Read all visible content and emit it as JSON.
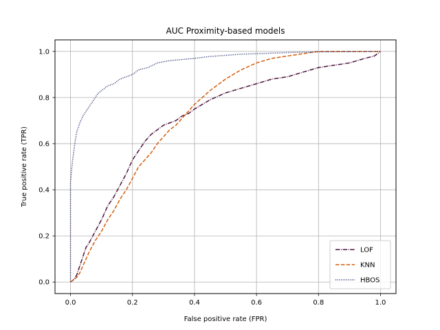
{
  "chart_data": {
    "type": "line",
    "title": "AUC Proximity-based models",
    "xlabel": "False positive rate (FPR)",
    "ylabel": "True positive rate (TPR)",
    "xlim": [
      -0.05,
      1.05
    ],
    "ylim": [
      -0.05,
      1.05
    ],
    "xticks": [
      0.0,
      0.2,
      0.4,
      0.6,
      0.8,
      1.0
    ],
    "yticks": [
      0.0,
      0.2,
      0.4,
      0.6,
      0.8,
      1.0
    ],
    "xtick_labels": [
      "0.0",
      "0.2",
      "0.4",
      "0.6",
      "0.8",
      "1.0"
    ],
    "ytick_labels": [
      "0.0",
      "0.2",
      "0.4",
      "0.6",
      "0.8",
      "1.0"
    ],
    "grid": true,
    "legend_position": "lower-right",
    "series": [
      {
        "name": "LOF",
        "color": "#4a0f3a",
        "style": "dashdot",
        "x": [
          0.0,
          0.01,
          0.02,
          0.03,
          0.04,
          0.05,
          0.06,
          0.08,
          0.1,
          0.12,
          0.14,
          0.16,
          0.18,
          0.2,
          0.22,
          0.24,
          0.26,
          0.28,
          0.3,
          0.32,
          0.34,
          0.36,
          0.38,
          0.4,
          0.45,
          0.5,
          0.55,
          0.6,
          0.65,
          0.7,
          0.75,
          0.8,
          0.85,
          0.9,
          0.95,
          0.98,
          1.0
        ],
        "y": [
          0.0,
          0.01,
          0.03,
          0.07,
          0.11,
          0.15,
          0.17,
          0.22,
          0.27,
          0.33,
          0.37,
          0.42,
          0.47,
          0.53,
          0.57,
          0.61,
          0.64,
          0.66,
          0.68,
          0.69,
          0.7,
          0.72,
          0.73,
          0.75,
          0.79,
          0.82,
          0.84,
          0.86,
          0.88,
          0.89,
          0.91,
          0.93,
          0.94,
          0.95,
          0.97,
          0.98,
          1.0
        ]
      },
      {
        "name": "KNN",
        "color": "#d45a0a",
        "style": "dashed",
        "x": [
          0.0,
          0.01,
          0.02,
          0.03,
          0.04,
          0.05,
          0.06,
          0.08,
          0.1,
          0.12,
          0.14,
          0.16,
          0.18,
          0.2,
          0.22,
          0.24,
          0.26,
          0.28,
          0.3,
          0.32,
          0.34,
          0.36,
          0.38,
          0.4,
          0.45,
          0.5,
          0.55,
          0.6,
          0.65,
          0.7,
          0.75,
          0.8,
          0.85,
          0.9,
          0.95,
          1.0
        ],
        "y": [
          0.0,
          0.01,
          0.02,
          0.04,
          0.07,
          0.1,
          0.13,
          0.18,
          0.22,
          0.27,
          0.31,
          0.36,
          0.4,
          0.45,
          0.5,
          0.53,
          0.56,
          0.6,
          0.63,
          0.66,
          0.68,
          0.71,
          0.74,
          0.77,
          0.83,
          0.88,
          0.92,
          0.95,
          0.97,
          0.98,
          0.99,
          1.0,
          1.0,
          1.0,
          1.0,
          1.0
        ]
      },
      {
        "name": "HBOS",
        "color": "#1f2a6b",
        "style": "dotted",
        "x": [
          0.0,
          0.0,
          0.003,
          0.006,
          0.01,
          0.015,
          0.02,
          0.03,
          0.04,
          0.05,
          0.06,
          0.07,
          0.08,
          0.09,
          0.1,
          0.12,
          0.14,
          0.16,
          0.18,
          0.2,
          0.22,
          0.25,
          0.28,
          0.32,
          0.36,
          0.4,
          0.45,
          0.5,
          0.55,
          0.6,
          0.7,
          0.8,
          0.9,
          1.0
        ],
        "y": [
          0.0,
          0.43,
          0.48,
          0.52,
          0.56,
          0.61,
          0.65,
          0.69,
          0.72,
          0.74,
          0.76,
          0.78,
          0.8,
          0.82,
          0.83,
          0.85,
          0.86,
          0.88,
          0.89,
          0.9,
          0.92,
          0.93,
          0.95,
          0.96,
          0.965,
          0.97,
          0.978,
          0.983,
          0.988,
          0.99,
          0.995,
          0.998,
          0.999,
          1.0
        ]
      }
    ]
  }
}
